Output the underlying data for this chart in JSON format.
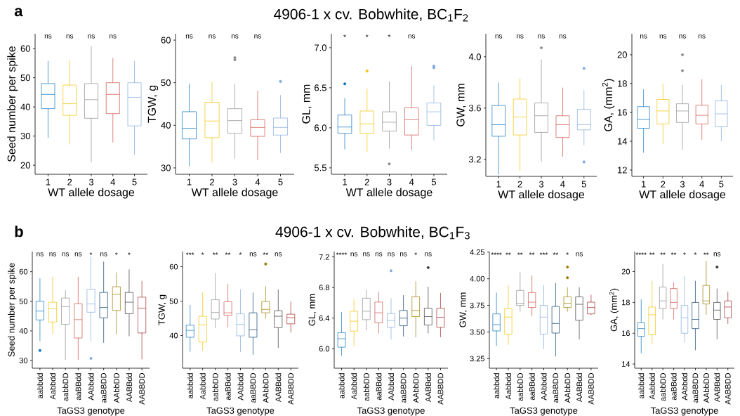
{
  "chart_data": [
    {
      "type": "box",
      "title": "a",
      "xlabel": "WT allele dosage",
      "ylabel": "Seed number per spike",
      "categories": [
        "1",
        "2",
        "3",
        "4",
        "5"
      ],
      "colors": [
        "#0a72c0",
        "#f2c200",
        "#8c8c8c",
        "#cd4f45",
        "#80a9e0"
      ],
      "ylim": [
        16.9,
        65.1
      ],
      "yticks": [
        20,
        30,
        40,
        50,
        60
      ],
      "boxes": [
        {
          "low": 29.4,
          "q1": 39.4,
          "median": 44.3,
          "q3": 48.0,
          "high": 55.8
        },
        {
          "low": 27.1,
          "q1": 37.1,
          "median": 41.1,
          "q3": 47.5,
          "high": 56.1
        },
        {
          "low": 21.0,
          "q1": 36.1,
          "median": 42.5,
          "q3": 48.0,
          "high": 60.8
        },
        {
          "low": 27.8,
          "q1": 37.7,
          "median": 44.3,
          "q3": 48.3,
          "high": 56.8
        },
        {
          "low": 23.5,
          "q1": 33.5,
          "median": 43.3,
          "q3": 48.3,
          "high": 55.8
        }
      ],
      "annotations": [
        "ns",
        "ns",
        "ns",
        "ns"
      ]
    },
    {
      "type": "box",
      "xlabel": "WT allele dosage",
      "ylabel": "TGW, g",
      "categories": [
        "1",
        "2",
        "3",
        "4",
        "5"
      ],
      "colors": [
        "#0a72c0",
        "#f2c200",
        "#8c8c8c",
        "#cd4f45",
        "#80a9e0"
      ],
      "ylim": [
        28.5,
        61.5
      ],
      "yticks": [
        30,
        40,
        50,
        60
      ],
      "boxes": [
        {
          "low": 30.4,
          "q1": 36.8,
          "median": 39.3,
          "q3": 43.2,
          "high": 49.8
        },
        {
          "low": 31.3,
          "q1": 37.1,
          "median": 41.0,
          "q3": 45.4,
          "high": 50.1
        },
        {
          "low": 32.2,
          "q1": 38.1,
          "median": 41.1,
          "q3": 43.9,
          "high": 49.7,
          "outliers": [
            55.4,
            55.9
          ]
        },
        {
          "low": 31.8,
          "q1": 37.4,
          "median": 39.5,
          "q3": 41.3,
          "high": 48.1
        },
        {
          "low": 33.5,
          "q1": 37.7,
          "median": 39.5,
          "q3": 41.7,
          "high": 47.1,
          "outliers": [
            50.3
          ]
        }
      ],
      "annotations": [
        "ns",
        "ns",
        "ns",
        "ns"
      ]
    },
    {
      "type": "box",
      "title": "4906-1 x cv. Bobwhite, BC$_{1}$F$_{2}$",
      "xlabel": "WT allele dosage",
      "ylabel": "GL, mm",
      "categories": [
        "1",
        "2",
        "3",
        "4",
        "5"
      ],
      "colors": [
        "#0a72c0",
        "#f2c200",
        "#8c8c8c",
        "#cd4f45",
        "#80a9e0"
      ],
      "ylim": [
        5.42,
        7.175
      ],
      "yticks": [
        5.5,
        {
          "value": 6,
          "label": "6.0"
        },
        6.5,
        {
          "value": 7,
          "label": "7.0"
        }
      ],
      "boxes": [
        {
          "low": 5.73,
          "q1": 5.93,
          "median": 6.01,
          "q3": 6.16,
          "high": 6.37,
          "outliers": [
            6.55
          ]
        },
        {
          "low": 5.7,
          "q1": 5.93,
          "median": 6.05,
          "q3": 6.21,
          "high": 6.49,
          "outliers": [
            6.71
          ]
        },
        {
          "low": 5.74,
          "q1": 5.96,
          "median": 6.07,
          "q3": 6.2,
          "high": 6.58,
          "outliers": [
            5.55
          ]
        },
        {
          "low": 5.72,
          "q1": 5.91,
          "median": 6.1,
          "q3": 6.25,
          "high": 6.77
        },
        {
          "low": 5.84,
          "q1": 6.03,
          "median": 6.2,
          "q3": 6.31,
          "high": 6.53,
          "outliers": [
            6.75,
            6.77
          ]
        }
      ],
      "annotations": [
        "*",
        "*",
        "*",
        "ns"
      ]
    },
    {
      "type": "box",
      "xlabel": "WT allele dosage",
      "ylabel": "GW, mm",
      "categories": [
        "1",
        "2",
        "3",
        "4",
        "5"
      ],
      "colors": [
        "#0a72c0",
        "#f2c200",
        "#8c8c8c",
        "#cd4f45",
        "#80a9e0"
      ],
      "ylim": [
        3.067,
        4.18
      ],
      "yticks": [
        3.2,
        3.6,
        {
          "value": 4,
          "label": "4.0"
        }
      ],
      "boxes": [
        {
          "low": 3.08,
          "q1": 3.38,
          "median": 3.47,
          "q3": 3.62,
          "high": 3.8
        },
        {
          "low": 3.11,
          "q1": 3.39,
          "median": 3.53,
          "q3": 3.67,
          "high": 3.83
        },
        {
          "low": 3.18,
          "q1": 3.41,
          "median": 3.54,
          "q3": 3.64,
          "high": 3.98,
          "outliers": [
            4.07
          ]
        },
        {
          "low": 3.22,
          "q1": 3.37,
          "median": 3.47,
          "q3": 3.54,
          "high": 3.76
        },
        {
          "low": 3.31,
          "q1": 3.43,
          "median": 3.47,
          "q3": 3.59,
          "high": 3.74,
          "outliers": [
            3.91,
            3.18
          ]
        }
      ],
      "annotations": [
        "ns",
        "ns",
        "ns",
        "ns"
      ]
    },
    {
      "type": "box",
      "xlabel": "WT allele dosage",
      "ylabel": "GA, (mm$^{2}$)",
      "categories": [
        "1",
        "2",
        "3",
        "4",
        "5"
      ],
      "colors": [
        "#0a72c0",
        "#f2c200",
        "#8c8c8c",
        "#cd4f45",
        "#80a9e0"
      ],
      "ylim": [
        11.56,
        21.46
      ],
      "yticks": [
        12,
        14,
        16,
        18,
        20
      ],
      "boxes": [
        {
          "low": 13.2,
          "q1": 14.9,
          "median": 15.5,
          "q3": 16.4,
          "high": 17.6
        },
        {
          "low": 13.8,
          "q1": 15.2,
          "median": 16.1,
          "q3": 16.9,
          "high": 18.0
        },
        {
          "low": 13.4,
          "q1": 15.3,
          "median": 16.1,
          "q3": 16.6,
          "high": 17.9,
          "outliers": [
            18.9,
            20.0
          ]
        },
        {
          "low": 14.1,
          "q1": 15.2,
          "median": 15.8,
          "q3": 16.5,
          "high": 18.3
        },
        {
          "low": 14.0,
          "q1": 15.0,
          "median": 15.9,
          "q3": 16.8,
          "high": 17.9
        }
      ],
      "annotations": [
        "ns",
        "ns",
        "ns",
        "ns"
      ]
    },
    {
      "type": "box",
      "title": "b",
      "xlabel": "TaGS3 genotype",
      "ylabel": "Seed number per spike",
      "categories": [
        "aabbdd",
        "Aabbdd",
        "aabbDD",
        "aaBBdd",
        "AAbbdd",
        "aaBBDD",
        "AAbbDD",
        "AABBdd",
        "AABBDD"
      ],
      "colors": [
        "#0a72c0",
        "#f2c200",
        "#8c8c8c",
        "#cd4f45",
        "#80a9e0",
        "#0b3f6e",
        "#9a7d00",
        "#3a3a3a",
        "#a52a2a"
      ],
      "ylim": [
        27.4,
        66.8
      ],
      "yticks": [
        30,
        40,
        50,
        60
      ],
      "boxes": [
        {
          "low": 36.6,
          "q1": 43.7,
          "median": 46.7,
          "q3": 50.0,
          "high": 57.8,
          "outliers": [
            33.4
          ]
        },
        {
          "low": 39.0,
          "q1": 43.0,
          "median": 47.5,
          "q3": 49.7,
          "high": 58.3
        },
        {
          "low": 30.2,
          "q1": 42.2,
          "median": 48.2,
          "q3": 51.1,
          "high": 53.8
        },
        {
          "low": 30.2,
          "q1": 37.6,
          "median": 43.8,
          "q3": 49.2,
          "high": 58.3
        },
        {
          "low": 36.5,
          "q1": 46.3,
          "median": 49.1,
          "q3": 54.0,
          "high": 65.1,
          "outliers": [
            30.7
          ]
        },
        {
          "low": 36.0,
          "q1": 44.4,
          "median": 47.9,
          "q3": 53.0,
          "high": 63.4
        },
        {
          "low": 38.8,
          "q1": 46.9,
          "median": 52.4,
          "q3": 54.9,
          "high": 59.8
        },
        {
          "low": 38.2,
          "q1": 45.8,
          "median": 49.7,
          "q3": 53.0,
          "high": 60.8
        },
        {
          "low": 30.4,
          "q1": 39.3,
          "median": 47.7,
          "q3": 51.4,
          "high": 56.9
        }
      ],
      "annotations": [
        "ns",
        "ns",
        "ns",
        "ns",
        "*",
        "ns",
        "*",
        "*"
      ]
    },
    {
      "type": "box",
      "xlabel": "TaGS3 genotype",
      "ylabel": "TGW, g",
      "categories": [
        "aabbdd",
        "Aabbdd",
        "aabbDD",
        "aaBBdd",
        "AAbbdd",
        "aaBBDD",
        "AAbbDD",
        "AABBdd",
        "AABBDD"
      ],
      "colors": [
        "#0a72c0",
        "#f2c200",
        "#8c8c8c",
        "#cd4f45",
        "#80a9e0",
        "#0b3f6e",
        "#9a7d00",
        "#3a3a3a",
        "#a52a2a"
      ],
      "ylim": [
        30.5,
        64.4
      ],
      "yticks": [
        40,
        50,
        60
      ],
      "boxes": [
        {
          "low": 35.3,
          "q1": 39.5,
          "median": 41.5,
          "q3": 43.0,
          "high": 48.9
        },
        {
          "low": 35.6,
          "q1": 38.1,
          "median": 43.1,
          "q3": 45.6,
          "high": 52.5
        },
        {
          "low": 42.2,
          "q1": 44.8,
          "median": 46.7,
          "q3": 50.4,
          "high": 58.1
        },
        {
          "low": 42.4,
          "q1": 45.9,
          "median": 46.6,
          "q3": 49.8,
          "high": 55.0
        },
        {
          "low": 35.2,
          "q1": 39.9,
          "median": 43.2,
          "q3": 46.3,
          "high": 53.4
        },
        {
          "low": 34.4,
          "q1": 39.5,
          "median": 41.7,
          "q3": 46.6,
          "high": 52.5
        },
        {
          "low": 44.9,
          "q1": 46.6,
          "median": 47.6,
          "q3": 49.9,
          "high": 54.3,
          "outliers": [
            60.8
          ]
        },
        {
          "low": 36.4,
          "q1": 42.3,
          "median": 45.6,
          "q3": 47.2,
          "high": 53.4
        },
        {
          "low": 40.9,
          "q1": 43.4,
          "median": 45.2,
          "q3": 46.2,
          "high": 49.8
        }
      ],
      "annotations": [
        "***",
        "*",
        "**",
        "**",
        "*",
        "ns",
        "**",
        "ns"
      ]
    },
    {
      "type": "box",
      "title": "4906-1 x cv. Bobwhite, BC$_{1}$F$_{3}$",
      "xlabel": "TaGS3 genotype",
      "ylabel": "GL, mm",
      "categories": [
        "aabbdd",
        "Aabbdd",
        "aabbDD",
        "aaBBdd",
        "AAbbdd",
        "aaBBDD",
        "AAbbDD",
        "AABBdd",
        "AABBDD"
      ],
      "colors": [
        "#0a72c0",
        "#f2c200",
        "#8c8c8c",
        "#cd4f45",
        "#80a9e0",
        "#0b3f6e",
        "#9a7d00",
        "#3a3a3a",
        "#a52a2a"
      ],
      "ylim": [
        5.745,
        7.27
      ],
      "yticks": [
        {
          "value": 6,
          "label": "6.0"
        },
        6.4,
        6.8,
        7.2
      ],
      "boxes": [
        {
          "low": 5.91,
          "q1": 6.02,
          "median": 6.13,
          "q3": 6.21,
          "high": 6.48
        },
        {
          "low": 6.03,
          "q1": 6.23,
          "median": 6.36,
          "q3": 6.49,
          "high": 6.65
        },
        {
          "low": 6.24,
          "q1": 6.38,
          "median": 6.49,
          "q3": 6.66,
          "high": 6.77
        },
        {
          "low": 6.2,
          "q1": 6.34,
          "median": 6.47,
          "q3": 6.61,
          "high": 6.74
        },
        {
          "low": 6.12,
          "q1": 6.28,
          "median": 6.37,
          "q3": 6.46,
          "high": 6.66,
          "outliers": [
            7.02
          ]
        },
        {
          "low": 6.16,
          "q1": 6.3,
          "median": 6.4,
          "q3": 6.5,
          "high": 6.7
        },
        {
          "low": 6.15,
          "q1": 6.42,
          "median": 6.5,
          "q3": 6.68,
          "high": 6.88
        },
        {
          "low": 6.2,
          "q1": 6.31,
          "median": 6.42,
          "q3": 6.53,
          "high": 6.81,
          "outliers": [
            7.06
          ]
        },
        {
          "low": 6.15,
          "q1": 6.28,
          "median": 6.41,
          "q3": 6.53,
          "high": 6.73
        }
      ],
      "annotations": [
        "****",
        "ns",
        "ns",
        "ns",
        "ns",
        "ns",
        "*",
        "ns"
      ]
    },
    {
      "type": "box",
      "xlabel": "TaGS3 genotype",
      "ylabel": "GW, mm",
      "categories": [
        "aabbdd",
        "Aabbdd",
        "aabbDD",
        "aaBBdd",
        "AAbbdd",
        "aaBBDD",
        "AAbbDD",
        "AABBdd",
        "AABBDD"
      ],
      "colors": [
        "#0a72c0",
        "#f2c200",
        "#8c8c8c",
        "#cd4f45",
        "#80a9e0",
        "#0b3f6e",
        "#9a7d00",
        "#3a3a3a",
        "#a52a2a"
      ],
      "ylim": [
        3.16,
        4.255
      ],
      "yticks": [
        3.25,
        {
          "value": 3.5,
          "label": "3.50"
        },
        3.75,
        {
          "value": 4,
          "label": "4.00"
        },
        4.25
      ],
      "boxes": [
        {
          "low": 3.37,
          "q1": 3.51,
          "median": 3.57,
          "q3": 3.67,
          "high": 3.87
        },
        {
          "low": 3.38,
          "q1": 3.48,
          "median": 3.64,
          "q3": 3.72,
          "high": 3.94
        },
        {
          "low": 3.69,
          "q1": 3.75,
          "median": 3.77,
          "q3": 3.89,
          "high": 4.06
        },
        {
          "low": 3.65,
          "q1": 3.73,
          "median": 3.78,
          "q3": 3.87,
          "high": 4.03
        },
        {
          "low": 3.34,
          "q1": 3.48,
          "median": 3.64,
          "q3": 3.75,
          "high": 3.94
        },
        {
          "low": 3.27,
          "q1": 3.49,
          "median": 3.58,
          "q3": 3.74,
          "high": 3.96
        },
        {
          "low": 3.69,
          "q1": 3.73,
          "median": 3.77,
          "q3": 3.83,
          "high": 3.92,
          "outliers": [
            4.01,
            4.11
          ]
        },
        {
          "low": 3.43,
          "q1": 3.61,
          "median": 3.76,
          "q3": 3.83,
          "high": 3.92
        },
        {
          "low": 3.66,
          "q1": 3.67,
          "median": 3.73,
          "q3": 3.78,
          "high": 3.85
        }
      ],
      "annotations": [
        "****",
        "**",
        "**",
        "**",
        "***",
        "**",
        "*",
        "ns"
      ]
    },
    {
      "type": "box",
      "xlabel": "TaGS3 genotype",
      "ylabel": "GA, (mm$^{2}$)",
      "categories": [
        "aabbdd",
        "Aabbdd",
        "aabbDD",
        "aaBBdd",
        "AAbbdd",
        "aaBBDD",
        "AAbbDD",
        "AABBdd",
        "AABBDD"
      ],
      "colors": [
        "#0a72c0",
        "#f2c200",
        "#8c8c8c",
        "#cd4f45",
        "#80a9e0",
        "#0b3f6e",
        "#9a7d00",
        "#3a3a3a",
        "#a52a2a"
      ],
      "ylim": [
        13.73,
        21.3
      ],
      "yticks": [
        14,
        16,
        18,
        20
      ],
      "boxes": [
        {
          "low": 14.7,
          "q1": 15.8,
          "median": 16.3,
          "q3": 16.7,
          "high": 18.2
        },
        {
          "low": 15.3,
          "q1": 15.9,
          "median": 17.2,
          "q3": 17.7,
          "high": 19.4
        },
        {
          "low": 16.9,
          "q1": 17.6,
          "median": 18.1,
          "q3": 19.0,
          "high": 20.5
        },
        {
          "low": 16.9,
          "q1": 17.6,
          "median": 18.0,
          "q3": 18.9,
          "high": 19.3
        },
        {
          "low": 15.4,
          "q1": 16.0,
          "median": 17.0,
          "q3": 17.8,
          "high": 19.7
        },
        {
          "low": 14.9,
          "q1": 16.3,
          "median": 16.9,
          "q3": 18.0,
          "high": 19.4
        },
        {
          "low": 17.2,
          "q1": 17.9,
          "median": 18.1,
          "q3": 19.1,
          "high": 20.7
        },
        {
          "low": 15.6,
          "q1": 16.9,
          "median": 17.5,
          "q3": 18.0,
          "high": 18.9,
          "outliers": [
            20.3
          ]
        },
        {
          "low": 16.6,
          "q1": 17.0,
          "median": 17.7,
          "q3": 18.1,
          "high": 18.7
        }
      ],
      "annotations": [
        "****",
        "**",
        "**",
        "**",
        "*",
        "*",
        "**",
        "ns"
      ]
    }
  ]
}
